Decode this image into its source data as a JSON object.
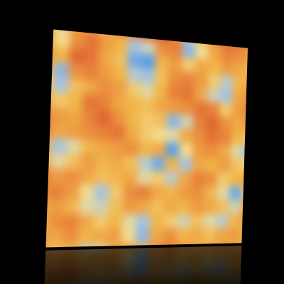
{
  "chart_data": {
    "type": "heatmap",
    "tick_labels": false,
    "grid": false,
    "vlim": [
      -1,
      1
    ],
    "colors": [
      "#3f93e6",
      "#a6c3e0",
      "#f4dd90",
      "#f2b54a",
      "#e8823a",
      "#d44e28"
    ],
    "cells": [
      [
        0.3,
        -0.3,
        0.4,
        0.5,
        0.2,
        0.5,
        0.6,
        0.8,
        0.9,
        0.6,
        -0.5,
        0.1,
        0.5,
        0.8,
        0.7,
        0.5
      ],
      [
        0.3,
        -0.2,
        0.5,
        0.7,
        0.4,
        0.2,
        -0.6,
        -0.4,
        0.5,
        0.6,
        -0.7,
        -0.2,
        0.3,
        0.6,
        0.5,
        0.3
      ],
      [
        0.4,
        0.2,
        0.8,
        0.7,
        0.3,
        0.1,
        -0.8,
        -0.9,
        0.2,
        0.4,
        0.0,
        0.3,
        0.2,
        0.4,
        0.3,
        0.2
      ],
      [
        0.2,
        -0.7,
        0.5,
        0.6,
        0.4,
        0.2,
        -0.5,
        -0.6,
        0.1,
        0.5,
        0.6,
        0.4,
        0.0,
        -0.5,
        0.2,
        0.3
      ],
      [
        0.0,
        -0.6,
        0.1,
        0.3,
        0.5,
        0.4,
        0.0,
        -0.3,
        0.2,
        0.6,
        0.7,
        0.3,
        -0.4,
        -0.6,
        0.3,
        0.5
      ],
      [
        0.3,
        0.0,
        0.2,
        0.7,
        0.6,
        0.3,
        0.2,
        0.1,
        0.3,
        0.4,
        0.5,
        0.7,
        0.6,
        0.0,
        0.4,
        0.6
      ],
      [
        0.5,
        0.4,
        0.3,
        0.6,
        0.8,
        0.5,
        0.2,
        0.0,
        0.1,
        -0.7,
        -0.4,
        0.6,
        0.8,
        0.5,
        0.3,
        0.4
      ],
      [
        0.6,
        0.3,
        0.4,
        0.5,
        0.6,
        0.7,
        0.3,
        0.0,
        -0.2,
        -0.3,
        0.3,
        0.5,
        0.7,
        0.6,
        0.2,
        0.0
      ],
      [
        0.2,
        -0.6,
        -0.3,
        0.2,
        0.3,
        0.4,
        0.5,
        0.2,
        0.3,
        -0.9,
        -0.2,
        0.4,
        0.5,
        0.3,
        -0.3,
        -0.7
      ],
      [
        0.3,
        -0.3,
        0.1,
        0.4,
        0.2,
        0.3,
        0.1,
        -0.5,
        -0.8,
        0.2,
        -0.6,
        0.3,
        0.2,
        0.4,
        0.1,
        -0.2
      ],
      [
        0.6,
        0.4,
        0.5,
        0.3,
        0.1,
        0.2,
        0.3,
        -0.3,
        0.0,
        -0.5,
        0.3,
        0.6,
        0.5,
        0.0,
        0.2,
        0.3
      ],
      [
        0.5,
        0.6,
        0.4,
        -0.2,
        -0.6,
        0.0,
        0.5,
        0.6,
        0.3,
        0.2,
        0.4,
        0.5,
        0.2,
        -0.3,
        -0.8,
        0.0
      ],
      [
        0.3,
        0.4,
        0.2,
        -0.3,
        -0.4,
        0.1,
        0.4,
        0.3,
        0.1,
        0.3,
        0.2,
        0.4,
        0.3,
        0.1,
        -0.4,
        0.3
      ],
      [
        0.2,
        0.5,
        0.6,
        0.3,
        0.0,
        0.2,
        -0.3,
        -0.6,
        0.2,
        0.0,
        -0.4,
        0.1,
        -0.3,
        -0.5,
        0.2,
        0.4
      ],
      [
        0.4,
        0.3,
        0.5,
        0.2,
        0.3,
        0.4,
        -0.2,
        -0.7,
        0.3,
        0.5,
        0.2,
        0.3,
        0.1,
        0.3,
        0.4,
        0.2
      ],
      [
        0.3,
        0.1,
        0.2,
        -0.5,
        -0.3,
        0.3,
        0.4,
        0.2,
        0.5,
        0.6,
        0.4,
        0.2,
        0.3,
        0.4,
        0.3,
        0.2
      ]
    ]
  }
}
